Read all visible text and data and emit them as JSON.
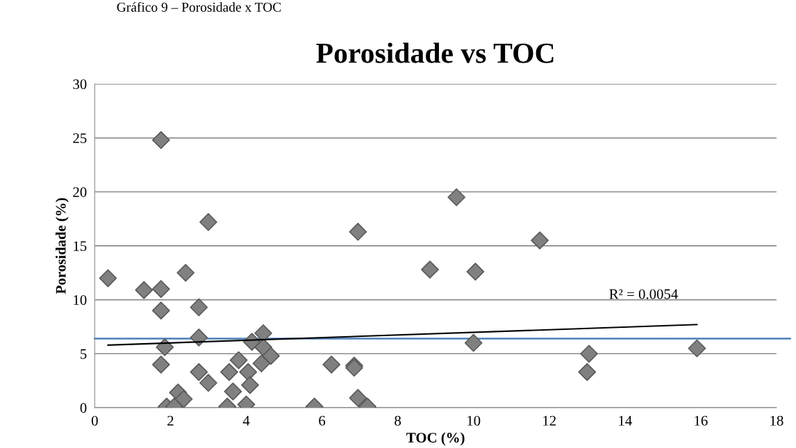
{
  "chart_data": {
    "type": "scatter",
    "title": "Porosidade vs TOC",
    "xlabel": "TOC (%)",
    "ylabel": "Porosidade (%)",
    "annotations": [
      "Gráfico 9 – Porosidade x TOC",
      "R² = 0.0054"
    ],
    "series": [
      {
        "color": "#808080",
        "marker": "diamond",
        "x": [
          0.35,
          1.3,
          1.75,
          1.75,
          1.75,
          1.75,
          1.85,
          1.9,
          2.1,
          2.2,
          2.35,
          2.4,
          2.75,
          2.75,
          2.75,
          3.0,
          3.0,
          3.5,
          3.55,
          3.65,
          3.8,
          4.0,
          4.05,
          4.1,
          4.15,
          4.4,
          4.45,
          4.45,
          4.65,
          5.8,
          6.25,
          6.85,
          6.85,
          6.95,
          6.95,
          7.2,
          8.85,
          9.55,
          10.0,
          10.05,
          11.75,
          13.0,
          13.05,
          15.9
        ],
        "values": [
          12.0,
          10.9,
          11.0,
          24.8,
          9.0,
          4.0,
          5.6,
          0.1,
          0.1,
          1.4,
          0.8,
          12.5,
          9.3,
          6.5,
          3.3,
          17.2,
          2.3,
          0.1,
          3.3,
          1.5,
          4.4,
          0.3,
          3.3,
          2.1,
          6.1,
          4.1,
          6.9,
          5.6,
          4.8,
          0.1,
          4.0,
          3.9,
          3.7,
          0.9,
          16.3,
          0.1,
          12.8,
          19.5,
          6.0,
          12.6,
          15.5,
          3.3,
          5.0,
          5.5
        ]
      },
      {
        "type": "line",
        "color": "#000000",
        "marker": "none",
        "x": [
          0.35,
          15.9
        ],
        "values": [
          5.8,
          7.7
        ]
      }
    ],
    "ref_lines": [
      {
        "axis": "y",
        "value": 6.4,
        "color": "#4a7ebb"
      }
    ],
    "xlim": [
      0,
      18
    ],
    "xticks": [
      0,
      2,
      4,
      6,
      8,
      10,
      12,
      14,
      16,
      18
    ],
    "ylim": [
      0,
      30
    ],
    "yticks": [
      0,
      5,
      10,
      15,
      20,
      25,
      30
    ],
    "grid": "y",
    "legend": false
  }
}
